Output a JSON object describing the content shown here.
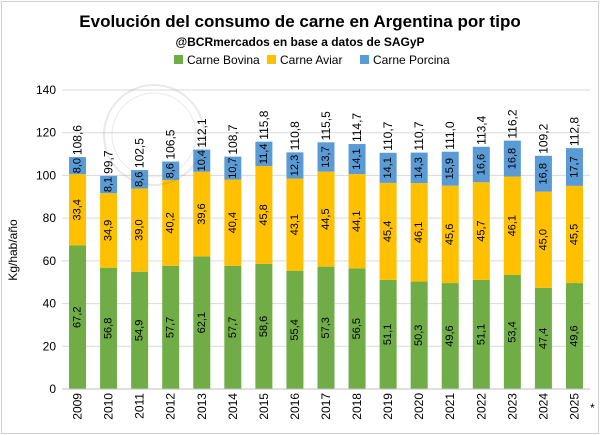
{
  "chart_data": {
    "type": "bar",
    "stacked": true,
    "title": "Evolución del consumo de carne en Argentina por tipo",
    "subtitle": "@BCRmercados en base a datos de SAGyP",
    "xlabel": "",
    "ylabel": "Kg/hab/año",
    "ylim": [
      0,
      140
    ],
    "yticks": [
      0,
      20,
      40,
      60,
      80,
      100,
      120,
      140
    ],
    "grid": true,
    "legend_position": "top",
    "categories": [
      "2009",
      "2010",
      "2011",
      "2012",
      "2013",
      "2014",
      "2015",
      "2016",
      "2017",
      "2018",
      "2019",
      "2020",
      "2021",
      "2022",
      "2023",
      "2024",
      "2025"
    ],
    "footnote_mark": "*",
    "series": [
      {
        "name": "Carne Bovina",
        "color": "#70ad47",
        "values": [
          67.2,
          56.8,
          54.9,
          57.7,
          62.1,
          57.7,
          58.6,
          55.4,
          57.3,
          56.5,
          51.1,
          50.3,
          49.6,
          51.1,
          53.4,
          47.4,
          49.6
        ],
        "labels": [
          "67,2",
          "56,8",
          "54,9",
          "57,7",
          "62,1",
          "57,7",
          "58,6",
          "55,4",
          "57,3",
          "56,5",
          "51,1",
          "50,3",
          "49,6",
          "51,1",
          "53,4",
          "47,4",
          "49,6"
        ]
      },
      {
        "name": "Carne Aviar",
        "color": "#ffc000",
        "values": [
          33.4,
          34.9,
          39.0,
          40.2,
          39.6,
          40.4,
          45.8,
          43.1,
          44.5,
          44.1,
          45.4,
          46.1,
          45.6,
          45.7,
          46.1,
          45.0,
          45.5
        ],
        "labels": [
          "33,4",
          "34,9",
          "39,0",
          "40,2",
          "39,6",
          "40,4",
          "45,8",
          "43,1",
          "44,5",
          "44,1",
          "45,4",
          "46,1",
          "45,6",
          "45,7",
          "46,1",
          "45,0",
          "45,5"
        ]
      },
      {
        "name": "Carne Porcina",
        "color": "#5b9bd5",
        "values": [
          8.0,
          8.1,
          8.6,
          8.6,
          10.4,
          10.7,
          11.4,
          12.3,
          13.7,
          14.1,
          14.1,
          14.3,
          15.9,
          16.6,
          16.8,
          16.8,
          17.7
        ],
        "labels": [
          "8,0",
          "8,1",
          "8,6",
          "8,6",
          "10,4",
          "10,7",
          "11,4",
          "12,3",
          "13,7",
          "14,1",
          "14,1",
          "14,3",
          "15,9",
          "16,6",
          "16,8",
          "16,8",
          "17,7"
        ]
      }
    ],
    "totals": [
      108.6,
      99.7,
      102.5,
      106.5,
      112.1,
      108.7,
      115.8,
      110.8,
      115.5,
      114.7,
      110.7,
      110.7,
      111.0,
      113.4,
      116.2,
      109.2,
      112.8
    ],
    "total_labels": [
      "108,6",
      "99,7",
      "102,5",
      "106,5",
      "112,1",
      "108,7",
      "115,8",
      "110,8",
      "115,5",
      "114,7",
      "110,7",
      "110,7",
      "111,0",
      "113,4",
      "116,2",
      "109,2",
      "112,8"
    ]
  }
}
